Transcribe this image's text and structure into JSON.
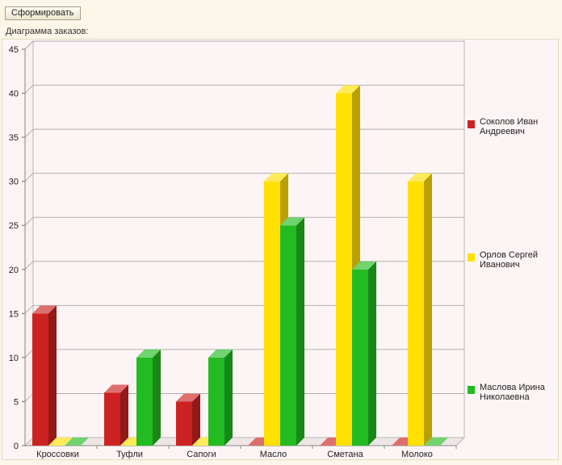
{
  "toolbar": {
    "form_label": "Сформировать"
  },
  "caption": "Диаграмма заказов:",
  "chart_data": {
    "type": "bar",
    "categories": [
      "Кроссовки",
      "Туфли",
      "Сапоги",
      "Масло",
      "Сметана",
      "Молоко"
    ],
    "series": [
      {
        "name": "Соколов Иван Андреевич",
        "color": "#cc2222",
        "values": [
          15,
          6,
          5,
          0,
          0,
          0
        ]
      },
      {
        "name": "Орлов Сергей Иванович",
        "color": "#ffe000",
        "values": [
          0,
          0,
          0,
          30,
          40,
          30
        ]
      },
      {
        "name": "Маслова Ирина Николаевна",
        "color": "#22bb22",
        "values": [
          0,
          10,
          10,
          25,
          20,
          0
        ]
      }
    ],
    "yticks": [
      0,
      5,
      10,
      15,
      20,
      25,
      30,
      35,
      40,
      45
    ],
    "ylim": [
      0,
      45
    ],
    "grid": true,
    "legend_position": "right"
  }
}
